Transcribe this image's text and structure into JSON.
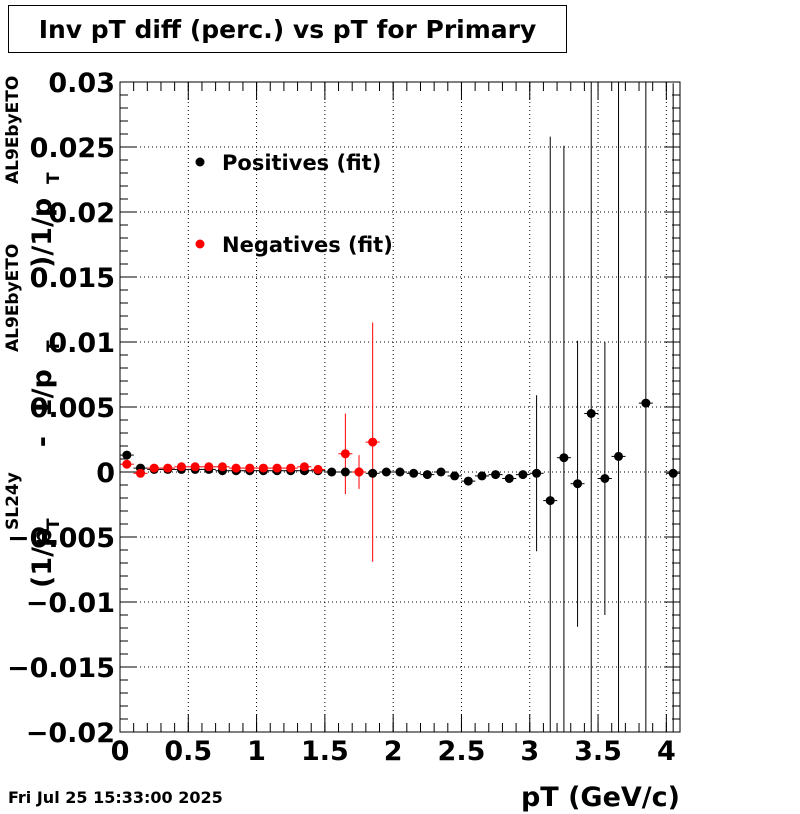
{
  "chart_data": {
    "type": "scatter",
    "title": "Inv pT diff (perc.) vs pT for Primary",
    "xlabel": "pT (GeV/c)",
    "ylabel_parts": {
      "open_paren": "(1/p",
      "t_sub_a": "T",
      "sl_sup": "SL24y",
      "minus_one": "  -  1/p",
      "t_sub_b": "T",
      "eto_sup_a": "AL9EbyETO",
      "close_part": ")/1/p",
      "t_sub_c": "T",
      "eto_sup_b": "AL9EbyETO"
    },
    "xlim": [
      0,
      4.1
    ],
    "ylim": [
      -0.02,
      0.03
    ],
    "x_ticks": [
      0,
      0.5,
      1,
      1.5,
      2,
      2.5,
      3,
      3.5,
      4
    ],
    "x_tick_labels": [
      "0",
      "0.5",
      "1",
      "1.5",
      "2",
      "2.5",
      "3",
      "3.5",
      "4"
    ],
    "y_ticks": [
      -0.02,
      -0.015,
      -0.01,
      -0.005,
      0,
      0.005,
      0.01,
      0.015,
      0.02,
      0.025,
      0.03
    ],
    "y_tick_labels": [
      "−0.02",
      "−0.015",
      "−0.01",
      "−0.005",
      "0",
      "0.005",
      "0.01",
      "0.015",
      "0.02",
      "0.025",
      "0.03"
    ],
    "grid": true,
    "legend_position": "top-left",
    "series": [
      {
        "name": "Positives (fit)",
        "color": "#000000",
        "x": [
          0.05,
          0.15,
          0.25,
          0.35,
          0.45,
          0.55,
          0.65,
          0.75,
          0.85,
          0.95,
          1.05,
          1.15,
          1.25,
          1.35,
          1.45,
          1.55,
          1.65,
          1.75,
          1.85,
          1.95,
          2.05,
          2.15,
          2.25,
          2.35,
          2.45,
          2.55,
          2.65,
          2.75,
          2.85,
          2.95,
          3.05,
          3.15,
          3.25,
          3.35,
          3.45,
          3.55,
          3.65,
          3.85,
          4.05
        ],
        "y": [
          0.0013,
          0.0003,
          0.0002,
          0.0002,
          0.0002,
          0.0002,
          0.0002,
          0.0001,
          0.0001,
          0.0001,
          0.0001,
          0.0001,
          0.0001,
          0.0001,
          0.0001,
          0.0,
          0.0,
          0.0,
          -0.0001,
          0.0,
          0.0,
          -0.0001,
          -0.0002,
          0.0,
          -0.0003,
          -0.0007,
          -0.0003,
          -0.0002,
          -0.0005,
          -0.0002,
          -0.0001,
          -0.0022,
          0.0011,
          -0.0009,
          0.0045,
          -0.0005,
          0.0012,
          0.0053,
          -0.0001
        ],
        "err": [
          0.0002,
          0.0001,
          0.0001,
          0.0001,
          0.0001,
          0.0001,
          0.0001,
          0.0001,
          0.0001,
          0.0001,
          0.0001,
          0.0001,
          0.0001,
          0.0001,
          0.0001,
          0.0001,
          0.0001,
          0.0001,
          0.0001,
          0.0001,
          0.0001,
          0.0001,
          0.0001,
          0.0001,
          0.0002,
          0.0002,
          0.0001,
          0.0001,
          0.0003,
          0.0002,
          0.006,
          0.028,
          0.024,
          0.011,
          0.03,
          0.0105,
          0.03,
          0.03,
          0.03
        ]
      },
      {
        "name": "Negatives (fit)",
        "color": "#ff0000",
        "x": [
          0.05,
          0.15,
          0.25,
          0.35,
          0.45,
          0.55,
          0.65,
          0.75,
          0.85,
          0.95,
          1.05,
          1.15,
          1.25,
          1.35,
          1.45,
          1.65,
          1.75,
          1.85
        ],
        "y": [
          0.0006,
          -0.0001,
          0.0003,
          0.0003,
          0.0004,
          0.0004,
          0.0004,
          0.0004,
          0.0003,
          0.0003,
          0.0003,
          0.0003,
          0.0003,
          0.0004,
          0.0002,
          0.0014,
          0.0,
          0.0023
        ],
        "err": [
          0.0001,
          0.0001,
          0.0001,
          0.0001,
          0.0001,
          0.0001,
          0.0001,
          0.0001,
          0.0001,
          0.0001,
          0.0001,
          0.0001,
          0.0001,
          0.0001,
          0.0001,
          0.0031,
          0.0013,
          0.0092
        ]
      }
    ]
  },
  "footer": {
    "timestamp": "Fri Jul 25 15:33:00 2025"
  }
}
